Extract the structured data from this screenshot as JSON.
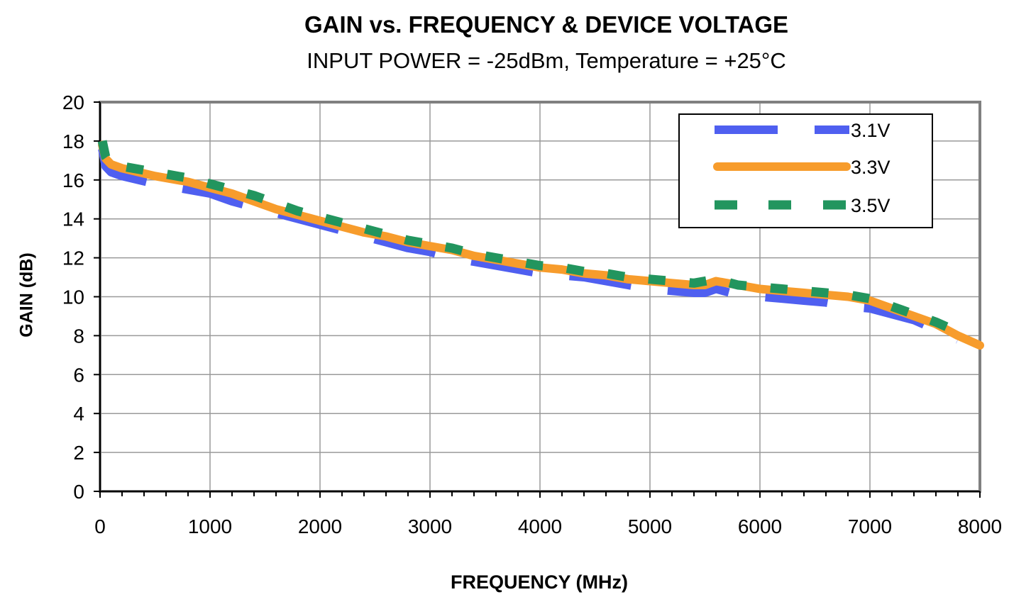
{
  "chart_data": {
    "type": "line",
    "title": "GAIN vs. FREQUENCY & DEVICE VOLTAGE",
    "subtitle": "INPUT POWER = -25dBm, Temperature = +25°C",
    "xlabel": "FREQUENCY (MHz)",
    "ylabel": "GAIN (dB)",
    "xlim": [
      0,
      8000
    ],
    "ylim": [
      0,
      20
    ],
    "xticks": [
      0,
      1000,
      2000,
      3000,
      4000,
      5000,
      6000,
      7000,
      8000
    ],
    "yticks": [
      0,
      2,
      4,
      6,
      8,
      10,
      12,
      14,
      16,
      18,
      20
    ],
    "grid": true,
    "legend_position": "top-right",
    "series": [
      {
        "name": "3.1V",
        "color": "#4f5ff0",
        "style": "long-dash",
        "x": [
          20,
          50,
          100,
          200,
          500,
          800,
          1000,
          1200,
          1400,
          1600,
          1800,
          2000,
          2200,
          2400,
          2600,
          2800,
          3000,
          3200,
          3400,
          3600,
          3800,
          4000,
          4200,
          4400,
          4600,
          4800,
          5000,
          5200,
          5400,
          5500,
          5600,
          5800,
          6000,
          6200,
          6400,
          6600,
          6800,
          7000,
          7200,
          7400,
          7600,
          7800
        ],
        "y": [
          17.6,
          16.7,
          16.4,
          16.2,
          15.8,
          15.5,
          15.3,
          14.9,
          14.6,
          14.3,
          14.0,
          13.7,
          13.4,
          13.1,
          12.8,
          12.5,
          12.3,
          12.0,
          11.8,
          11.6,
          11.4,
          11.2,
          11.1,
          11.0,
          10.8,
          10.6,
          10.4,
          10.3,
          10.2,
          10.2,
          10.4,
          10.1,
          10.0,
          9.9,
          9.8,
          9.7,
          9.5,
          9.4,
          9.1,
          8.8,
          8.3,
          7.8
        ]
      },
      {
        "name": "3.3V",
        "color": "#f79c2c",
        "style": "solid",
        "x": [
          20,
          50,
          100,
          200,
          500,
          800,
          1000,
          1200,
          1400,
          1600,
          1800,
          2000,
          2200,
          2400,
          2600,
          2800,
          3000,
          3200,
          3400,
          3600,
          3800,
          4000,
          4200,
          4400,
          4600,
          4800,
          5000,
          5200,
          5400,
          5500,
          5600,
          5800,
          6000,
          6200,
          6400,
          6600,
          6800,
          7000,
          7200,
          7400,
          7600,
          7800,
          8000
        ],
        "y": [
          17.8,
          17.1,
          16.8,
          16.6,
          16.2,
          15.9,
          15.6,
          15.3,
          14.9,
          14.5,
          14.2,
          13.9,
          13.6,
          13.3,
          13.1,
          12.8,
          12.6,
          12.4,
          12.1,
          11.9,
          11.7,
          11.5,
          11.4,
          11.2,
          11.1,
          10.9,
          10.8,
          10.7,
          10.6,
          10.6,
          10.8,
          10.6,
          10.4,
          10.3,
          10.2,
          10.1,
          10.0,
          9.8,
          9.4,
          9.0,
          8.6,
          8.0,
          7.5
        ]
      },
      {
        "name": "3.5V",
        "color": "#22955e",
        "style": "short-dash",
        "x": [
          20,
          50,
          100,
          200,
          500,
          800,
          1000,
          1200,
          1400,
          1600,
          1800,
          2000,
          2200,
          2400,
          2600,
          2800,
          3000,
          3200,
          3400,
          3600,
          3800,
          4000,
          4200,
          4400,
          4600,
          4800,
          5000,
          5200,
          5400,
          5500,
          5600,
          5800,
          6000,
          6200,
          6400,
          6600,
          6800,
          7000,
          7200,
          7400,
          7600,
          7800
        ],
        "y": [
          18.0,
          17.2,
          16.8,
          16.7,
          16.4,
          16.1,
          15.8,
          15.5,
          15.2,
          14.8,
          14.4,
          14.1,
          13.8,
          13.5,
          13.2,
          12.9,
          12.7,
          12.5,
          12.2,
          12.0,
          11.8,
          11.6,
          11.5,
          11.3,
          11.2,
          11.0,
          10.9,
          10.8,
          10.7,
          10.8,
          10.9,
          10.6,
          10.5,
          10.4,
          10.3,
          10.2,
          10.1,
          9.9,
          9.5,
          9.1,
          8.7,
          8.2
        ]
      }
    ]
  }
}
